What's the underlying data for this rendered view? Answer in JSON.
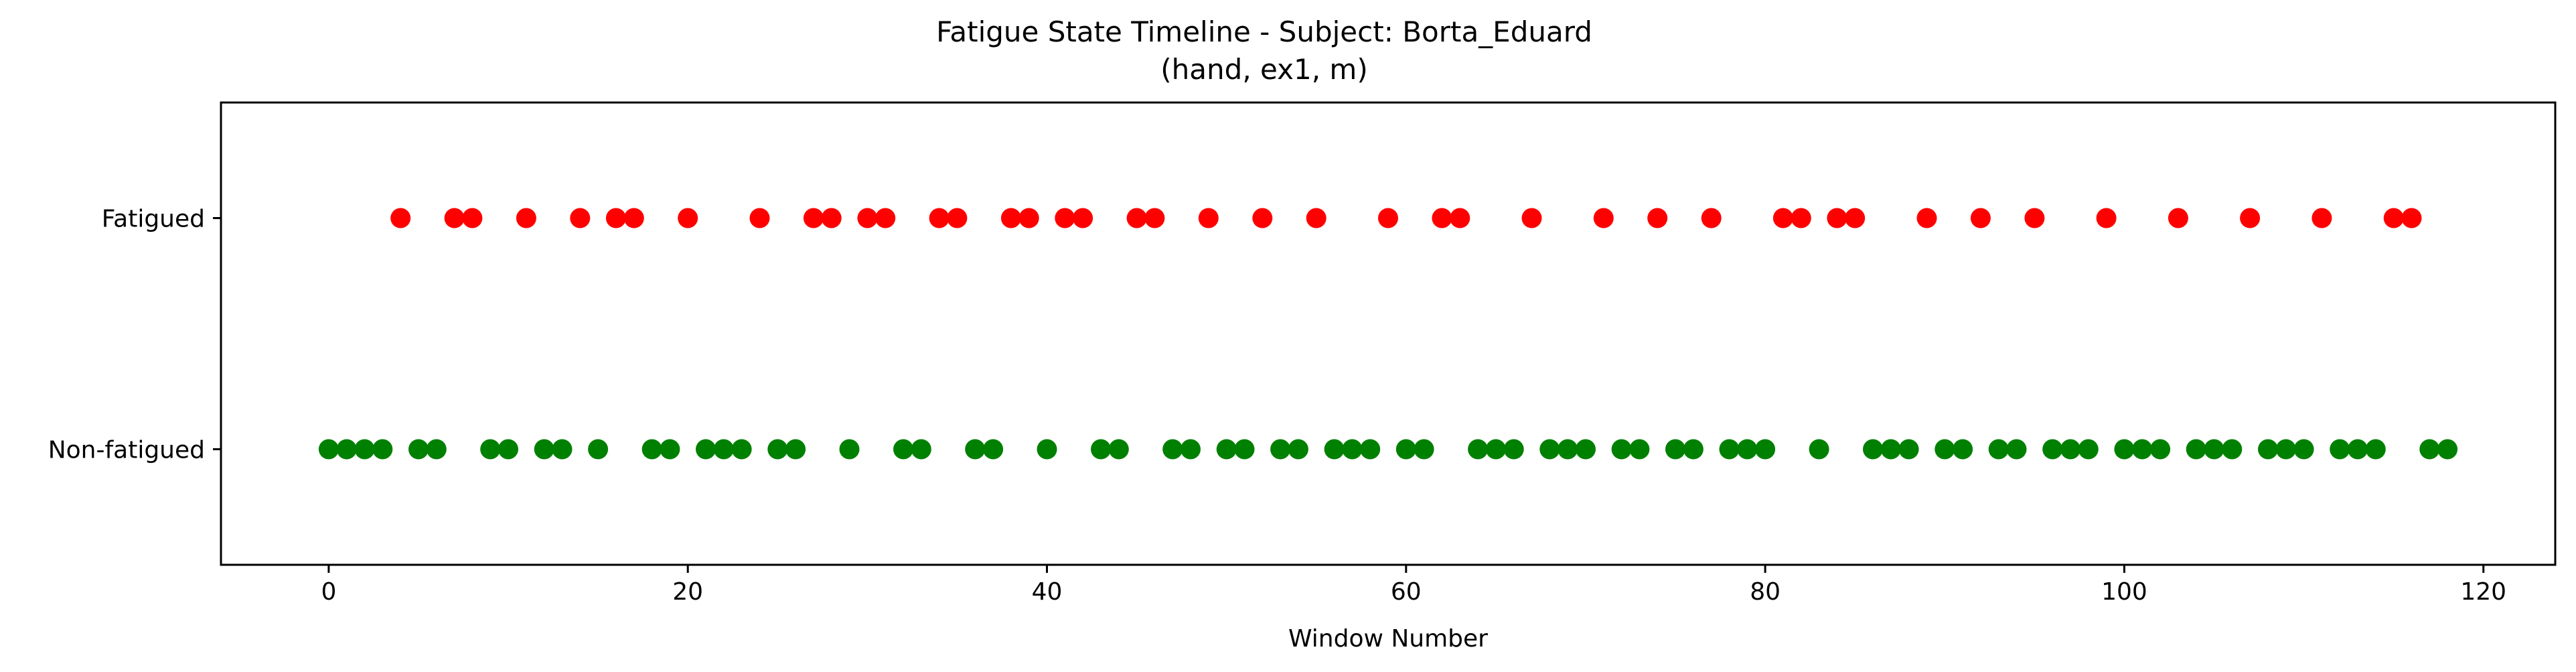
{
  "chart_data": {
    "type": "scatter",
    "title": "Fatigue State Timeline - Subject: Borta_Eduard",
    "subtitle": "(hand, ex1, m)",
    "xlabel": "Window Number",
    "ylabel": "",
    "xlim": [
      -6,
      124
    ],
    "ylim": [
      -0.5,
      1.5
    ],
    "x_ticks": [
      0,
      20,
      40,
      60,
      80,
      100,
      120
    ],
    "x_tick_labels": [
      "0",
      "20",
      "40",
      "60",
      "80",
      "100",
      "120"
    ],
    "y_ticks": [
      0,
      1
    ],
    "y_tick_labels": [
      "Non-fatigued",
      "Fatigued"
    ],
    "grid": false,
    "series": [
      {
        "color": "#ff0000",
        "y": 1,
        "x": [
          4,
          7,
          8,
          11,
          14,
          16,
          17,
          20,
          24,
          27,
          28,
          30,
          31,
          34,
          35,
          38,
          39,
          41,
          42,
          45,
          46,
          49,
          52,
          55,
          59,
          62,
          63,
          67,
          71,
          74,
          77,
          81,
          82,
          84,
          85,
          89,
          92,
          95,
          99,
          103,
          107,
          111,
          115,
          116
        ]
      },
      {
        "color": "#008000",
        "y": 0,
        "x": [
          0,
          1,
          2,
          3,
          5,
          6,
          9,
          10,
          12,
          13,
          15,
          18,
          19,
          21,
          22,
          23,
          25,
          26,
          29,
          32,
          33,
          36,
          37,
          40,
          43,
          44,
          47,
          48,
          50,
          51,
          53,
          54,
          56,
          57,
          58,
          60,
          61,
          64,
          65,
          66,
          68,
          69,
          70,
          72,
          73,
          75,
          76,
          78,
          79,
          80,
          83,
          86,
          87,
          88,
          90,
          91,
          93,
          94,
          96,
          97,
          98,
          100,
          101,
          102,
          104,
          105,
          106,
          108,
          109,
          110,
          112,
          113,
          114,
          117,
          118
        ]
      }
    ]
  }
}
